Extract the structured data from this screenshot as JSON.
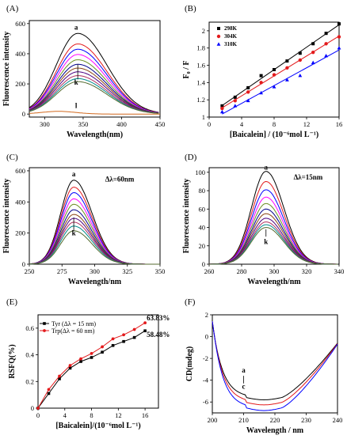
{
  "chart_data": [
    {
      "panel": "(A)",
      "type": "line",
      "xlabel": "Wavelength(nm)",
      "ylabel": "Fluorescence intensity",
      "xlim": [
        280,
        450
      ],
      "ylim": [
        -20,
        620
      ],
      "xticks": [
        300,
        350,
        400,
        450
      ],
      "yticks": [
        0,
        200,
        400,
        600
      ],
      "annotations": {
        "top": "a",
        "bottom": "k",
        "separate": "l"
      },
      "peak_x": 343,
      "series_peaks": [
        535,
        465,
        430,
        395,
        360,
        330,
        305,
        280,
        255,
        235,
        215
      ],
      "extra_series_peak": 18,
      "colors": [
        "#000000",
        "#e31a1c",
        "#0000ff",
        "#ff00ff",
        "#6b8e23",
        "#00008b",
        "#8b4513",
        "#4b0082",
        "#b03060",
        "#008b8b",
        "#556b2f",
        "#d2691e"
      ]
    },
    {
      "panel": "(B)",
      "type": "scatter",
      "xlabel": "[Baicalein] / (10⁻⁶mol L⁻¹)",
      "ylabel": "F₀ / F",
      "xlim": [
        0,
        16
      ],
      "ylim": [
        1.0,
        2.1
      ],
      "xticks": [
        0,
        4,
        8,
        12,
        16
      ],
      "yticks": [
        1.0,
        1.2,
        1.4,
        1.6,
        1.8,
        2.0
      ],
      "x": [
        1.6,
        3.2,
        4.8,
        6.4,
        8.0,
        9.6,
        11.2,
        12.8,
        14.4,
        16.0
      ],
      "series": [
        {
          "name": "298K",
          "color": "#000000",
          "marker": "square",
          "values": [
            1.13,
            1.23,
            1.34,
            1.48,
            1.55,
            1.65,
            1.74,
            1.85,
            1.97,
            2.08
          ]
        },
        {
          "name": "304K",
          "color": "#e31a1c",
          "marker": "circle",
          "values": [
            1.1,
            1.19,
            1.29,
            1.4,
            1.49,
            1.57,
            1.66,
            1.75,
            1.85,
            1.93
          ]
        },
        {
          "name": "310K",
          "color": "#0000ff",
          "marker": "triangle",
          "values": [
            1.06,
            1.13,
            1.19,
            1.28,
            1.35,
            1.43,
            1.48,
            1.63,
            1.71,
            1.8
          ]
        }
      ]
    },
    {
      "panel": "(C)",
      "type": "line",
      "xlabel": "Wavelength/nm",
      "ylabel": "Fluorescence intensity",
      "xlim": [
        250,
        350
      ],
      "ylim": [
        0,
        620
      ],
      "xticks": [
        250,
        275,
        300,
        325,
        350
      ],
      "yticks": [
        0,
        200,
        400,
        600
      ],
      "annotations": {
        "top": "a",
        "bottom": "k",
        "delta": "Δλ=60nm"
      },
      "peak_x": 284,
      "series_peaks": [
        540,
        495,
        460,
        420,
        385,
        350,
        320,
        295,
        270,
        245,
        215
      ],
      "colors": [
        "#000000",
        "#e31a1c",
        "#0000ff",
        "#ff00ff",
        "#6b8e23",
        "#00008b",
        "#8b4513",
        "#4b0082",
        "#b03060",
        "#008b8b",
        "#556b2f"
      ]
    },
    {
      "panel": "(D)",
      "type": "line",
      "xlabel": "Wavelength/nm",
      "ylabel": "Fluorescence intensity",
      "xlim": [
        260,
        340
      ],
      "ylim": [
        0,
        105
      ],
      "xticks": [
        260,
        280,
        300,
        320,
        340
      ],
      "yticks": [
        0,
        20,
        40,
        60,
        80,
        100
      ],
      "annotations": {
        "top": "a",
        "bottom": "k",
        "delta": "Δλ=15nm"
      },
      "peak_x": 295,
      "series_peaks": [
        101,
        90,
        81,
        73,
        66,
        60,
        55,
        50,
        46,
        43,
        40
      ],
      "colors": [
        "#000000",
        "#e31a1c",
        "#0000ff",
        "#ff00ff",
        "#6b8e23",
        "#00008b",
        "#8b4513",
        "#4b0082",
        "#b03060",
        "#008b8b",
        "#556b2f"
      ]
    },
    {
      "panel": "(E)",
      "type": "line",
      "xlabel": "[Baicalein]/(10⁻⁶mol L⁻¹)",
      "ylabel": "RSFQ(%)",
      "xlim": [
        0,
        18
      ],
      "ylim": [
        0,
        0.7
      ],
      "xticks": [
        0,
        4,
        8,
        12,
        16
      ],
      "yticks": [
        0.0,
        0.2,
        0.4,
        0.6
      ],
      "x": [
        0,
        1.6,
        3.2,
        4.8,
        6.4,
        8.0,
        9.6,
        11.2,
        12.8,
        14.4,
        16.0
      ],
      "series": [
        {
          "name": "Tyr (Δλ = 15 nm)",
          "color": "#000000",
          "marker": "square",
          "values": [
            0,
            0.11,
            0.22,
            0.3,
            0.35,
            0.38,
            0.42,
            0.47,
            0.5,
            0.53,
            0.58
          ]
        },
        {
          "name": "Trp(Δλ = 60 nm)",
          "color": "#e31a1c",
          "marker": "circle",
          "values": [
            0,
            0.14,
            0.24,
            0.32,
            0.37,
            0.41,
            0.46,
            0.52,
            0.55,
            0.59,
            0.64
          ]
        }
      ],
      "end_labels": [
        {
          "text": "63.83%",
          "color": "#e31a1c"
        },
        {
          "text": "58.48%",
          "color": "#000000"
        }
      ]
    },
    {
      "panel": "(F)",
      "type": "line",
      "xlabel": "Wavelength / nm",
      "ylabel": "CD(mdeg)",
      "xlim": [
        200,
        240
      ],
      "ylim": [
        -7,
        2
      ],
      "xticks": [
        200,
        210,
        220,
        230,
        240
      ],
      "yticks": [
        -6,
        -4,
        -2,
        0,
        2
      ],
      "annotations": {
        "top": "a",
        "bottom": "c"
      },
      "series": [
        {
          "color": "#000000",
          "scale": 1.0
        },
        {
          "color": "#e31a1c",
          "scale": 1.08
        },
        {
          "color": "#0000ff",
          "scale": 1.17
        }
      ]
    }
  ]
}
